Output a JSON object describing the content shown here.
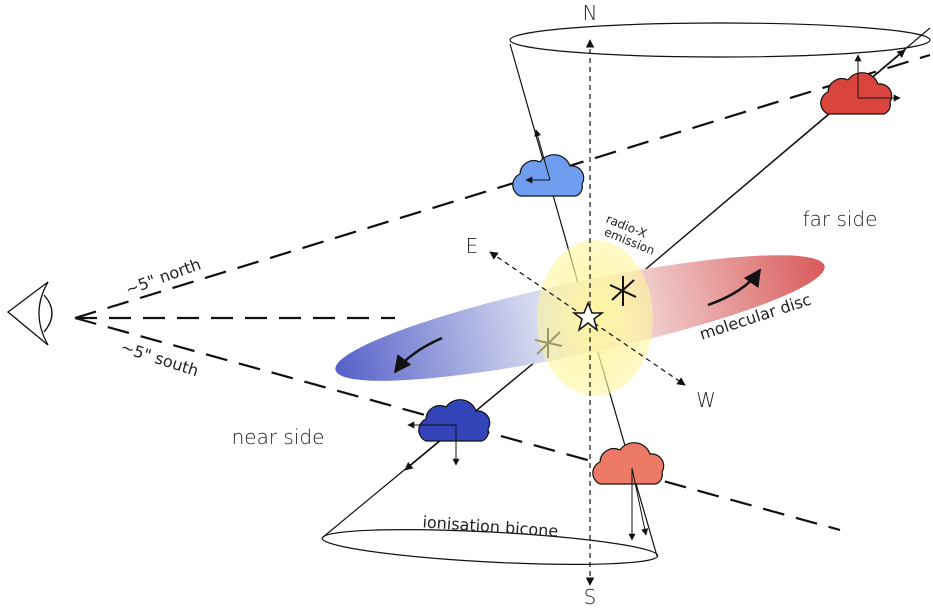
{
  "labels": {
    "north": "N",
    "south": "S",
    "east": "E",
    "west": "W",
    "far_side": "far side",
    "near_side": "near side",
    "radio_x_line1": "radio-X",
    "radio_x_line2": "emission",
    "molecular_disc": "molecular disc",
    "ionisation_bicone": "ionisation bicone",
    "offset_north": "~5\" north",
    "offset_south": "~5\" south"
  }
}
